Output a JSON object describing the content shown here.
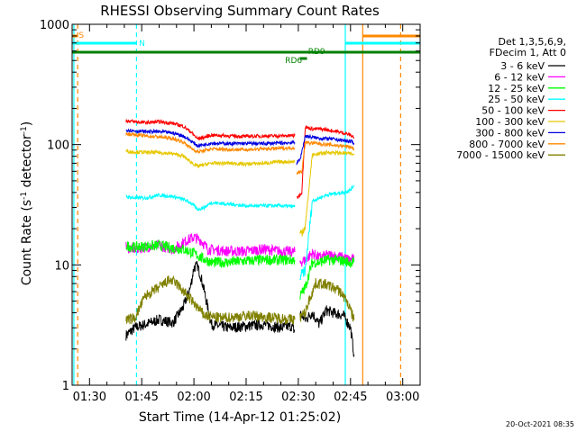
{
  "chart_data": {
    "type": "line",
    "title": "RHESSI Observing Summary Count Rates",
    "xlabel": "Start Time (14-Apr-12 01:25:02)",
    "ylabel_main": "Count Rate (s",
    "ylabel_sup1": "-1",
    "ylabel_mid": " detector",
    "ylabel_sup2": "-1",
    "ylabel_end": ")",
    "y_scale": "log",
    "ylim": [
      1,
      1000
    ],
    "xlim_minutes": [
      85,
      185
    ],
    "x_ticks": [
      {
        "minute": 90,
        "label": "01:30"
      },
      {
        "minute": 105,
        "label": "01:45"
      },
      {
        "minute": 120,
        "label": "02:00"
      },
      {
        "minute": 135,
        "label": "02:15"
      },
      {
        "minute": 150,
        "label": "02:30"
      },
      {
        "minute": 165,
        "label": "02:45"
      },
      {
        "minute": 180,
        "label": "03:00"
      }
    ],
    "y_ticks": [
      {
        "value": 1,
        "label": "1"
      },
      {
        "value": 10,
        "label": "10"
      },
      {
        "value": 100,
        "label": "100"
      },
      {
        "value": 1000,
        "label": "1000"
      }
    ],
    "legend_header": [
      "Det 1,3,5,6,9,",
      "FDecim 1, Att 0"
    ],
    "series": [
      {
        "name": "3 - 6 keV",
        "color": "#000000",
        "segments": [
          [
            [
              100.5,
              2.6
            ],
            [
              103,
              3
            ],
            [
              106,
              3.2
            ],
            [
              110,
              3.5
            ],
            [
              114,
              3.3
            ],
            [
              117,
              4.5
            ],
            [
              119,
              6.5
            ],
            [
              120,
              9.5
            ],
            [
              121,
              9.8
            ],
            [
              122,
              8
            ],
            [
              123,
              6
            ],
            [
              125,
              3.2
            ],
            [
              130,
              3
            ],
            [
              135,
              3.1
            ],
            [
              140,
              3.2
            ],
            [
              145,
              3
            ],
            [
              148,
              3.1
            ],
            [
              149,
              2.8
            ]
          ],
          [
            [
              150.5,
              4
            ],
            [
              152,
              3.5
            ],
            [
              154,
              4
            ],
            [
              156,
              3.2
            ],
            [
              158,
              4.2
            ],
            [
              160,
              4
            ],
            [
              163,
              3.8
            ],
            [
              165,
              3
            ],
            [
              166,
              1.8
            ]
          ]
        ]
      },
      {
        "name": "6 - 12 keV",
        "color": "#ff00ff",
        "segments": [
          [
            [
              100.5,
              14
            ],
            [
              103,
              13.5
            ],
            [
              106,
              14
            ],
            [
              110,
              14.5
            ],
            [
              114,
              13.5
            ],
            [
              118,
              16
            ],
            [
              120,
              17
            ],
            [
              122,
              16
            ],
            [
              124,
              13.5
            ],
            [
              130,
              13
            ],
            [
              135,
              13
            ],
            [
              140,
              13.5
            ],
            [
              145,
              13
            ],
            [
              149,
              12.8
            ]
          ],
          [
            [
              150.5,
              10.5
            ],
            [
              152,
              11
            ],
            [
              154,
              12.5
            ],
            [
              156,
              11.5
            ],
            [
              158,
              12
            ],
            [
              160,
              12
            ],
            [
              163,
              11.5
            ],
            [
              165,
              11
            ],
            [
              166,
              11
            ]
          ]
        ]
      },
      {
        "name": "12 - 25 keV",
        "color": "#00ff00",
        "segments": [
          [
            [
              100.5,
              14.5
            ],
            [
              103,
              14
            ],
            [
              106,
              14.3
            ],
            [
              110,
              14.5
            ],
            [
              114,
              13.8
            ],
            [
              117,
              13.5
            ],
            [
              120,
              12.5
            ],
            [
              122,
              11.5
            ],
            [
              125,
              10.5
            ],
            [
              130,
              10.5
            ],
            [
              135,
              10.8
            ],
            [
              140,
              11
            ],
            [
              145,
              11
            ],
            [
              149,
              11
            ]
          ],
          [
            [
              150.5,
              5.5
            ],
            [
              152,
              6.5
            ],
            [
              154,
              10.5
            ],
            [
              156,
              10.5
            ],
            [
              158,
              11
            ],
            [
              160,
              11
            ],
            [
              163,
              10.8
            ],
            [
              165,
              10.5
            ],
            [
              166,
              10.5
            ]
          ]
        ]
      },
      {
        "name": "25 - 50 keV",
        "color": "#00ffff",
        "segments": [
          [
            [
              100.5,
              37
            ],
            [
              103,
              36
            ],
            [
              106,
              36
            ],
            [
              110,
              38
            ],
            [
              114,
              37
            ],
            [
              117,
              35
            ],
            [
              119,
              33
            ],
            [
              121,
              29
            ],
            [
              123,
              30
            ],
            [
              125,
              33
            ],
            [
              130,
              32
            ],
            [
              135,
              31
            ],
            [
              140,
              31
            ],
            [
              145,
              31
            ],
            [
              149,
              30.5
            ]
          ],
          [
            [
              150.5,
              8
            ],
            [
              152,
              9
            ],
            [
              154,
              34
            ],
            [
              156,
              36
            ],
            [
              158,
              38
            ],
            [
              160,
              39
            ],
            [
              163,
              40
            ],
            [
              165,
              42
            ],
            [
              166,
              46
            ]
          ]
        ]
      },
      {
        "name": "50 - 100 keV",
        "color": "#ff0000",
        "segments": [
          [
            [
              100.5,
              158
            ],
            [
              103,
              155
            ],
            [
              106,
              152
            ],
            [
              110,
              155
            ],
            [
              114,
              150
            ],
            [
              117,
              142
            ],
            [
              119,
              128
            ],
            [
              121,
              112
            ],
            [
              123,
              115
            ],
            [
              125,
              120
            ],
            [
              130,
              118
            ],
            [
              135,
              117
            ],
            [
              140,
              118
            ],
            [
              145,
              118
            ],
            [
              149,
              119
            ]
          ],
          [
            [
              149.6,
              36
            ],
            [
              151,
              40
            ],
            [
              152,
              140
            ],
            [
              154,
              135
            ],
            [
              156,
              135
            ],
            [
              158,
              133
            ],
            [
              160,
              130
            ],
            [
              163,
              125
            ],
            [
              165,
              120
            ],
            [
              166,
              115
            ]
          ]
        ]
      },
      {
        "name": "100 - 300 keV",
        "color": "#e6c800",
        "segments": [
          [
            [
              100.5,
              88
            ],
            [
              103,
              87
            ],
            [
              106,
              86
            ],
            [
              110,
              86
            ],
            [
              114,
              84
            ],
            [
              117,
              80
            ],
            [
              119,
              72
            ],
            [
              121,
              66
            ],
            [
              123,
              68
            ],
            [
              125,
              70
            ],
            [
              130,
              70
            ],
            [
              135,
              69
            ],
            [
              140,
              70
            ],
            [
              145,
              72
            ],
            [
              149,
              72
            ]
          ],
          [
            [
              150.5,
              18
            ],
            [
              152,
              21
            ],
            [
              154,
              82
            ],
            [
              156,
              84
            ],
            [
              158,
              86
            ],
            [
              160,
              86
            ],
            [
              163,
              85
            ],
            [
              165,
              84
            ],
            [
              166,
              82
            ]
          ]
        ]
      },
      {
        "name": "300 - 800 keV",
        "color": "#0000e0",
        "segments": [
          [
            [
              100.5,
              133
            ],
            [
              103,
              130
            ],
            [
              106,
              128
            ],
            [
              110,
              128
            ],
            [
              114,
              125
            ],
            [
              117,
              118
            ],
            [
              119,
              108
            ],
            [
              121,
              98
            ],
            [
              123,
              100
            ],
            [
              125,
              103
            ],
            [
              130,
              102
            ],
            [
              135,
              102
            ],
            [
              140,
              102
            ],
            [
              145,
              103
            ],
            [
              149,
              104
            ]
          ],
          [
            [
              149.4,
              70
            ],
            [
              150.5,
              75
            ],
            [
              152,
              118
            ],
            [
              154,
              115
            ],
            [
              156,
              113
            ],
            [
              158,
              112
            ],
            [
              160,
              111
            ],
            [
              163,
              108
            ],
            [
              165,
              106
            ],
            [
              166,
              103
            ]
          ]
        ]
      },
      {
        "name": "800 - 7000 keV",
        "color": "#ff8800",
        "segments": [
          [
            [
              100.5,
              123
            ],
            [
              103,
              121
            ],
            [
              106,
              118
            ],
            [
              110,
              116
            ],
            [
              114,
              112
            ],
            [
              117,
              105
            ],
            [
              119,
              94
            ],
            [
              121,
              87
            ],
            [
              123,
              89
            ],
            [
              125,
              92
            ],
            [
              130,
              91
            ],
            [
              135,
              91
            ],
            [
              140,
              92
            ],
            [
              145,
              93
            ],
            [
              149,
              94
            ]
          ],
          [
            [
              149.6,
              58
            ],
            [
              151,
              60
            ],
            [
              152,
              104
            ],
            [
              154,
              103
            ],
            [
              156,
              102
            ],
            [
              158,
              100
            ],
            [
              160,
              99
            ],
            [
              163,
              97
            ],
            [
              165,
              96
            ],
            [
              166,
              92
            ]
          ]
        ]
      },
      {
        "name": "7000 - 15000 keV",
        "color": "#808000",
        "segments": [
          [
            [
              100.5,
              3.5
            ],
            [
              103,
              3.6
            ],
            [
              106,
              5.5
            ],
            [
              110,
              6.5
            ],
            [
              113,
              7.5
            ],
            [
              115,
              7
            ],
            [
              117,
              6
            ],
            [
              120,
              4.8
            ],
            [
              123,
              3.8
            ],
            [
              128,
              3.6
            ],
            [
              132,
              3.7
            ],
            [
              136,
              3.8
            ],
            [
              140,
              3.7
            ],
            [
              145,
              3.6
            ],
            [
              149,
              3.5
            ]
          ],
          [
            [
              150.5,
              3.7
            ],
            [
              152,
              4
            ],
            [
              153,
              5
            ],
            [
              155,
              7
            ],
            [
              157,
              7
            ],
            [
              160,
              6.5
            ],
            [
              162,
              6
            ],
            [
              164,
              5
            ],
            [
              166,
              3.5
            ]
          ]
        ]
      }
    ],
    "annotations": [
      {
        "label": "S",
        "color": "#ff8800"
      },
      {
        "label": "N",
        "color": "#00ffff"
      },
      {
        "label": "RD6",
        "color": "#008000"
      },
      {
        "label": "RD9",
        "color": "#008000"
      }
    ],
    "timestamp": "20-Oct-2021 08:35"
  },
  "colors": {
    "saa": "#ff8800",
    "night": "#00ffff",
    "decim": "#008000",
    "axis": "#000000"
  }
}
